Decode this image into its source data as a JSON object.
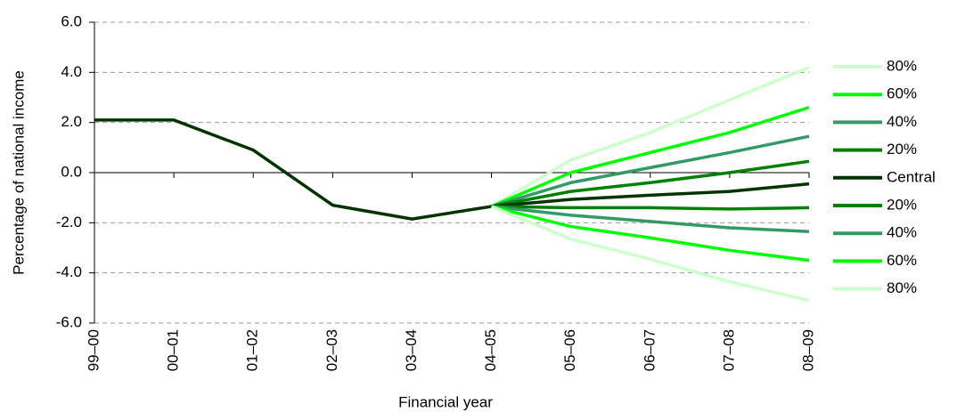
{
  "chart_data": {
    "type": "line",
    "x_label": "Financial year",
    "y_label": "Percentage of national income",
    "categories": [
      "99–00",
      "00–01",
      "01–02",
      "02–03",
      "03–04",
      "04–05",
      "05–06",
      "06–07",
      "07–08",
      "08–09"
    ],
    "ylim": [
      -6,
      6
    ],
    "yticks": [
      {
        "value": -6,
        "label": "-6.0"
      },
      {
        "value": -4,
        "label": "-4.0"
      },
      {
        "value": -2,
        "label": "-2.0"
      },
      {
        "value": 0,
        "label": "0.0"
      },
      {
        "value": 2,
        "label": "2.0"
      },
      {
        "value": 4,
        "label": "4.0"
      },
      {
        "value": 6,
        "label": "6.0"
      }
    ],
    "grid": true,
    "legend": "right",
    "series": [
      {
        "name": "80%",
        "color": "#ccffcc",
        "values": [
          null,
          null,
          null,
          null,
          null,
          -1.35,
          0.5,
          1.6,
          2.9,
          4.2
        ]
      },
      {
        "name": "60%",
        "color": "#00ff00",
        "values": [
          null,
          null,
          null,
          null,
          null,
          -1.35,
          0.0,
          0.8,
          1.6,
          2.6
        ]
      },
      {
        "name": "40%",
        "color": "#339966",
        "values": [
          null,
          null,
          null,
          null,
          null,
          -1.35,
          -0.4,
          0.2,
          0.8,
          1.45
        ]
      },
      {
        "name": "20%",
        "color": "#008000",
        "values": [
          null,
          null,
          null,
          null,
          null,
          -1.35,
          -0.75,
          -0.4,
          0.0,
          0.45
        ]
      },
      {
        "name": "Central",
        "color": "#003300",
        "values": [
          2.1,
          2.1,
          0.9,
          -1.3,
          -1.85,
          -1.35,
          -1.07,
          -0.9,
          -0.75,
          -0.45
        ]
      },
      {
        "name": "20%",
        "color": "#008000",
        "values": [
          null,
          null,
          null,
          null,
          null,
          -1.35,
          -1.4,
          -1.4,
          -1.45,
          -1.4
        ]
      },
      {
        "name": "40%",
        "color": "#339966",
        "values": [
          null,
          null,
          null,
          null,
          null,
          -1.35,
          -1.7,
          -1.95,
          -2.2,
          -2.35
        ]
      },
      {
        "name": "60%",
        "color": "#00ff00",
        "values": [
          null,
          null,
          null,
          null,
          null,
          -1.35,
          -2.15,
          -2.6,
          -3.1,
          -3.5
        ]
      },
      {
        "name": "80%",
        "color": "#ccffcc",
        "values": [
          null,
          null,
          null,
          null,
          null,
          -1.35,
          -2.65,
          -3.45,
          -4.35,
          -5.1
        ]
      }
    ]
  }
}
